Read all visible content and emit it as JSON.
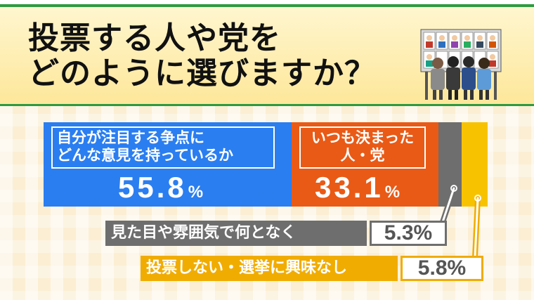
{
  "header": {
    "title_line1": "投票する人や党を",
    "title_line2": "どのように選びますか？"
  },
  "chart_data": {
    "type": "bar",
    "stacked": true,
    "orientation": "horizontal",
    "unit": "%",
    "categories": [
      "自分が注目する争点にどんな意見を持っているか",
      "いつも決まった人・党",
      "見た目や雰囲気で何となく",
      "投票しない・選挙に興味なし"
    ],
    "values": [
      55.8,
      33.1,
      5.3,
      5.8
    ],
    "colors": [
      "#2a7ef0",
      "#e95a16",
      "#6e6e6e",
      "#f7c300"
    ]
  },
  "bars": [
    {
      "caption_line1": "自分が注目する争点に",
      "caption_line2": "どんな意見を持っているか",
      "value": "55.8",
      "unit": "%"
    },
    {
      "caption_line1": "いつも決まった",
      "caption_line2": "人・党",
      "value": "33.1",
      "unit": "%"
    }
  ],
  "callouts": [
    {
      "label": "見た目や雰囲気で何となく",
      "value": "5.3%"
    },
    {
      "label": "投票しない・選挙に興味なし",
      "value": "5.8%"
    }
  ],
  "illustration": {
    "icon": "voting-posters-people-icon"
  }
}
